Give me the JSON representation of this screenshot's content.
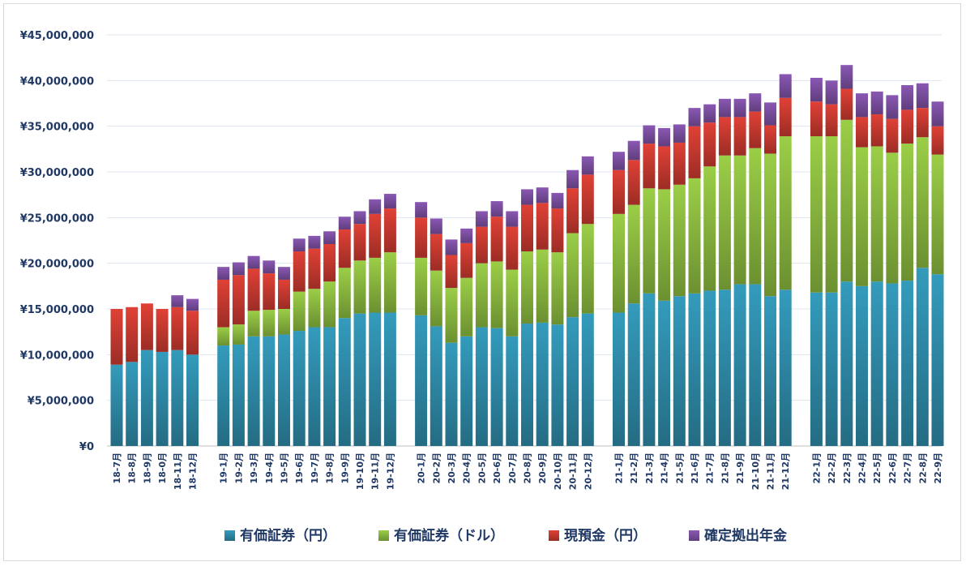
{
  "chart_data": {
    "type": "bar",
    "stacked": true,
    "ylim": [
      0,
      45000000
    ],
    "yticks": [
      {
        "value": 0,
        "label": "¥0"
      },
      {
        "value": 5000000,
        "label": "¥5,000,000"
      },
      {
        "value": 10000000,
        "label": "¥10,000,000"
      },
      {
        "value": 15000000,
        "label": "¥15,000,000"
      },
      {
        "value": 20000000,
        "label": "¥20,000,000"
      },
      {
        "value": 25000000,
        "label": "¥25,000,000"
      },
      {
        "value": 30000000,
        "label": "¥30,000,000"
      },
      {
        "value": 35000000,
        "label": "¥35,000,000"
      },
      {
        "value": 40000000,
        "label": "¥40,000,000"
      },
      {
        "value": 45000000,
        "label": "¥45,000,000"
      }
    ],
    "grid": true,
    "legend_position": "bottom",
    "groups": [
      [
        "18-7月",
        "18-8月",
        "18-9月",
        "18-0月",
        "18-11月",
        "18-12月"
      ],
      [
        "19-1月",
        "19-2月",
        "19-3月",
        "19-4月",
        "19-5月",
        "19-6月",
        "19-7月",
        "19-8月",
        "19-9月",
        "19-10月",
        "19-11月",
        "19-12月"
      ],
      [
        "20-1月",
        "20-2月",
        "20-3月",
        "20-4月",
        "20-5月",
        "20-6月",
        "20-7月",
        "20-8月",
        "20-9月",
        "20-10月",
        "20-11月",
        "20-12月"
      ],
      [
        "21-1月",
        "21-2月",
        "21-3月",
        "21-4月",
        "21-5月",
        "21-6月",
        "21-7月",
        "21-8月",
        "21-9月",
        "21-10月",
        "21-11月",
        "21-12月"
      ],
      [
        "22-1月",
        "22-2月",
        "22-3月",
        "22-4月",
        "22-5月",
        "22-6月",
        "22-7月",
        "22-8月",
        "22-9月"
      ]
    ],
    "series": [
      {
        "name": "有価証券（円）",
        "color": "#2e8aa8",
        "values": [
          8900000,
          9200000,
          10500000,
          10300000,
          10500000,
          10000000,
          11000000,
          11100000,
          12000000,
          12000000,
          12200000,
          12600000,
          13000000,
          13000000,
          14000000,
          14500000,
          14600000,
          14600000,
          14300000,
          13100000,
          11300000,
          12000000,
          13000000,
          12900000,
          12000000,
          13400000,
          13500000,
          13300000,
          14100000,
          14500000,
          14600000,
          15600000,
          16700000,
          15900000,
          16400000,
          16700000,
          17000000,
          17100000,
          17700000,
          17700000,
          16400000,
          17100000,
          16800000,
          16800000,
          18000000,
          17500000,
          18000000,
          17800000,
          18100000,
          19500000,
          18800000
        ]
      },
      {
        "name": "有価証券（ドル）",
        "color": "#8ab83f",
        "values": [
          0,
          0,
          0,
          0,
          0,
          0,
          2000000,
          2200000,
          2800000,
          2900000,
          2800000,
          4300000,
          4200000,
          5000000,
          5500000,
          5800000,
          6000000,
          6600000,
          6300000,
          6100000,
          6000000,
          6400000,
          7000000,
          7300000,
          7300000,
          7900000,
          8000000,
          7900000,
          9200000,
          9800000,
          10800000,
          10800000,
          11500000,
          12200000,
          12200000,
          12600000,
          13600000,
          14700000,
          14100000,
          14900000,
          15600000,
          16800000,
          17100000,
          17100000,
          17700000,
          15200000,
          14800000,
          14300000,
          15000000,
          14300000,
          13100000
        ]
      },
      {
        "name": "現預金（円）",
        "color": "#c83a30",
        "values": [
          6100000,
          6000000,
          5100000,
          4700000,
          4700000,
          4800000,
          5200000,
          5400000,
          4600000,
          4000000,
          3200000,
          4400000,
          4400000,
          4100000,
          4200000,
          4000000,
          4800000,
          4800000,
          4400000,
          4000000,
          3600000,
          3800000,
          4000000,
          4900000,
          4700000,
          5100000,
          5100000,
          4800000,
          4900000,
          5400000,
          4800000,
          4900000,
          4900000,
          4700000,
          4600000,
          5700000,
          4800000,
          4200000,
          4200000,
          4000000,
          3100000,
          4200000,
          3800000,
          3500000,
          3400000,
          3300000,
          3500000,
          3700000,
          3700000,
          3200000,
          3100000
        ]
      },
      {
        "name": "確定拠出年金",
        "color": "#7b4fa0",
        "values": [
          0,
          0,
          0,
          0,
          1300000,
          1300000,
          1400000,
          1400000,
          1400000,
          1400000,
          1400000,
          1400000,
          1400000,
          1400000,
          1400000,
          1400000,
          1600000,
          1600000,
          1700000,
          1700000,
          1700000,
          1600000,
          1700000,
          1700000,
          1700000,
          1700000,
          1700000,
          1700000,
          2000000,
          2000000,
          2000000,
          2100000,
          2000000,
          2000000,
          2000000,
          2000000,
          2000000,
          2000000,
          2000000,
          2000000,
          2500000,
          2600000,
          2600000,
          2600000,
          2600000,
          2600000,
          2500000,
          2600000,
          2700000,
          2700000,
          2700000
        ]
      }
    ]
  }
}
